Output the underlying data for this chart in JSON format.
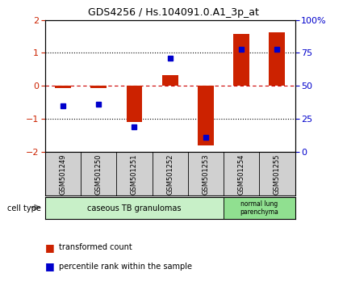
{
  "title": "GDS4256 / Hs.104091.0.A1_3p_at",
  "samples": [
    "GSM501249",
    "GSM501250",
    "GSM501251",
    "GSM501252",
    "GSM501253",
    "GSM501254",
    "GSM501255"
  ],
  "transformed_count": [
    -0.07,
    -0.07,
    -1.1,
    0.32,
    -1.82,
    1.57,
    1.62
  ],
  "percentile_rank": [
    35,
    36,
    19,
    71,
    11,
    78,
    78
  ],
  "ylim": [
    -2,
    2
  ],
  "right_ylim": [
    0,
    100
  ],
  "bar_color": "#cc2200",
  "square_color": "#0000cc",
  "zero_line_color": "#cc0000",
  "group1_label": "caseous TB granulomas",
  "group2_label": "normal lung\nparenchyma",
  "group1_color": "#c8f0c8",
  "group2_color": "#90e090",
  "sample_label_bg": "#d0d0d0",
  "cell_type_label": "cell type",
  "legend_bar_label": "transformed count",
  "legend_square_label": "percentile rank within the sample",
  "bg_color": "#ffffff",
  "tick_label_color_left": "#cc2200",
  "tick_label_color_right": "#0000cc",
  "bar_width": 0.45,
  "title_fontsize": 9,
  "tick_fontsize": 8,
  "sample_fontsize": 6,
  "group_fontsize": 7,
  "legend_fontsize": 7
}
